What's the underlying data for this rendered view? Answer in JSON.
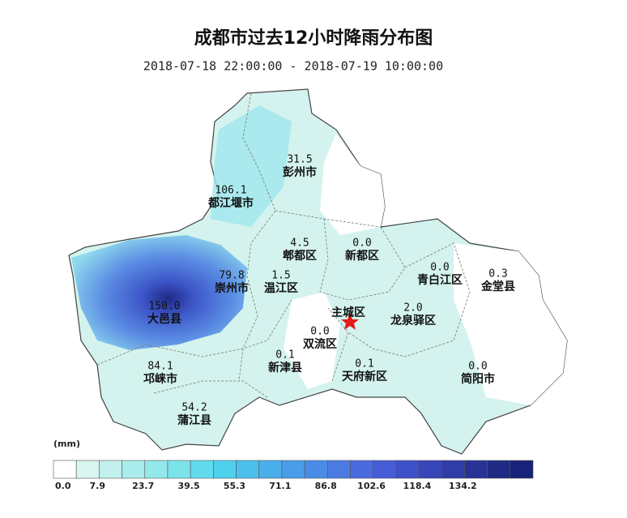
{
  "title": "成都市过去12小时降雨分布图",
  "subtitle": "2018-07-18 22:00:00 - 2018-07-19 10:00:00",
  "districts": [
    {
      "value": "31.5",
      "name": "彭州市"
    },
    {
      "value": "106.1",
      "name": "都江堰市"
    },
    {
      "value": "4.5",
      "name": "郫都区"
    },
    {
      "value": "0.0",
      "name": "新都区"
    },
    {
      "value": "79.8",
      "name": "崇州市"
    },
    {
      "value": "1.5",
      "name": "温江区"
    },
    {
      "value": "0.0",
      "name": "青白江区"
    },
    {
      "value": "0.3",
      "name": "金堂县"
    },
    {
      "value": "150.0",
      "name": "大邑县"
    },
    {
      "name": "主城区"
    },
    {
      "value": "2.0",
      "name": "龙泉驿区"
    },
    {
      "value": "0.0",
      "name": "双流区"
    },
    {
      "value": "0.1",
      "name": "新津县"
    },
    {
      "value": "0.1",
      "name": "天府新区"
    },
    {
      "value": "84.1",
      "name": "邛崃市"
    },
    {
      "value": "0.0",
      "name": "简阳市"
    },
    {
      "value": "54.2",
      "name": "蒲江县"
    }
  ],
  "legend": {
    "unit": "(mm)",
    "labels": [
      "0.0",
      "7.9",
      "23.7",
      "39.5",
      "55.3",
      "71.1",
      "86.8",
      "102.6",
      "118.4",
      "134.2"
    ],
    "colors": [
      "#ffffff",
      "#d9f5ef",
      "#c2f0ec",
      "#aaeceb",
      "#93e8ea",
      "#7be3ea",
      "#62dcec",
      "#4fd1ee",
      "#4cc0ec",
      "#4aaeea",
      "#4a9de8",
      "#4a8ce5",
      "#4a7be3",
      "#4a6ae0",
      "#465cd6",
      "#3f51c8",
      "#3746b8",
      "#303ca7",
      "#283296",
      "#1f2a85",
      "#182278"
    ]
  }
}
